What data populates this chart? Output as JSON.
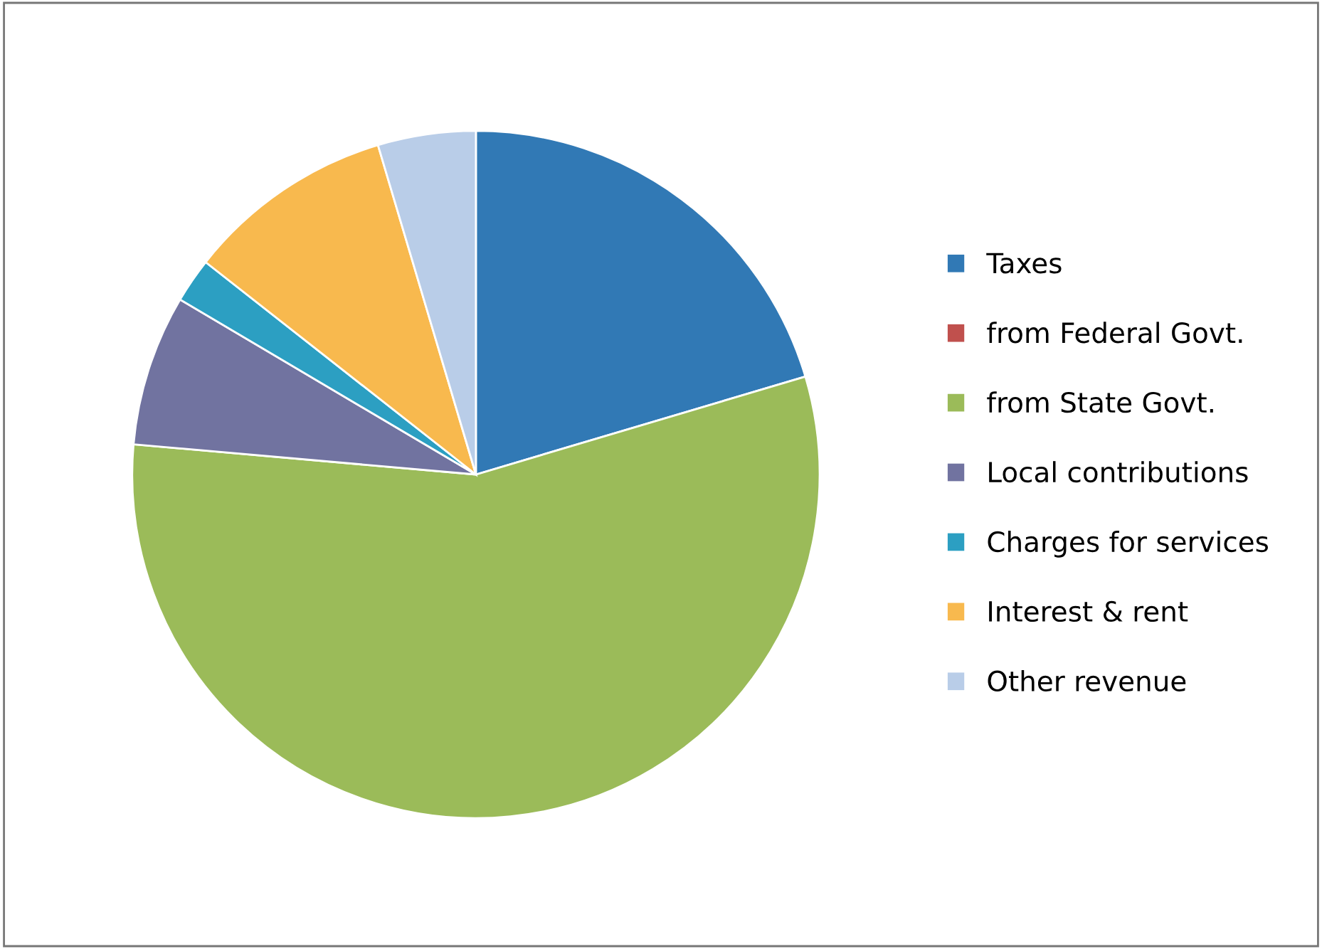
{
  "chart_data": {
    "type": "pie",
    "categories": [
      "Taxes",
      "from Federal Govt.",
      "from State Govt.",
      "Local contributions",
      "Charges for services",
      "Interest & rent",
      "Other revenue"
    ],
    "values": [
      20.4,
      0,
      56,
      7.1,
      2.1,
      9.8,
      4.6
    ],
    "colors": [
      "#3179b5",
      "#c0504d",
      "#9bbb59",
      "#7173a0",
      "#2c9fc2",
      "#f8b94e",
      "#b9cde8"
    ],
    "legend": "right"
  }
}
